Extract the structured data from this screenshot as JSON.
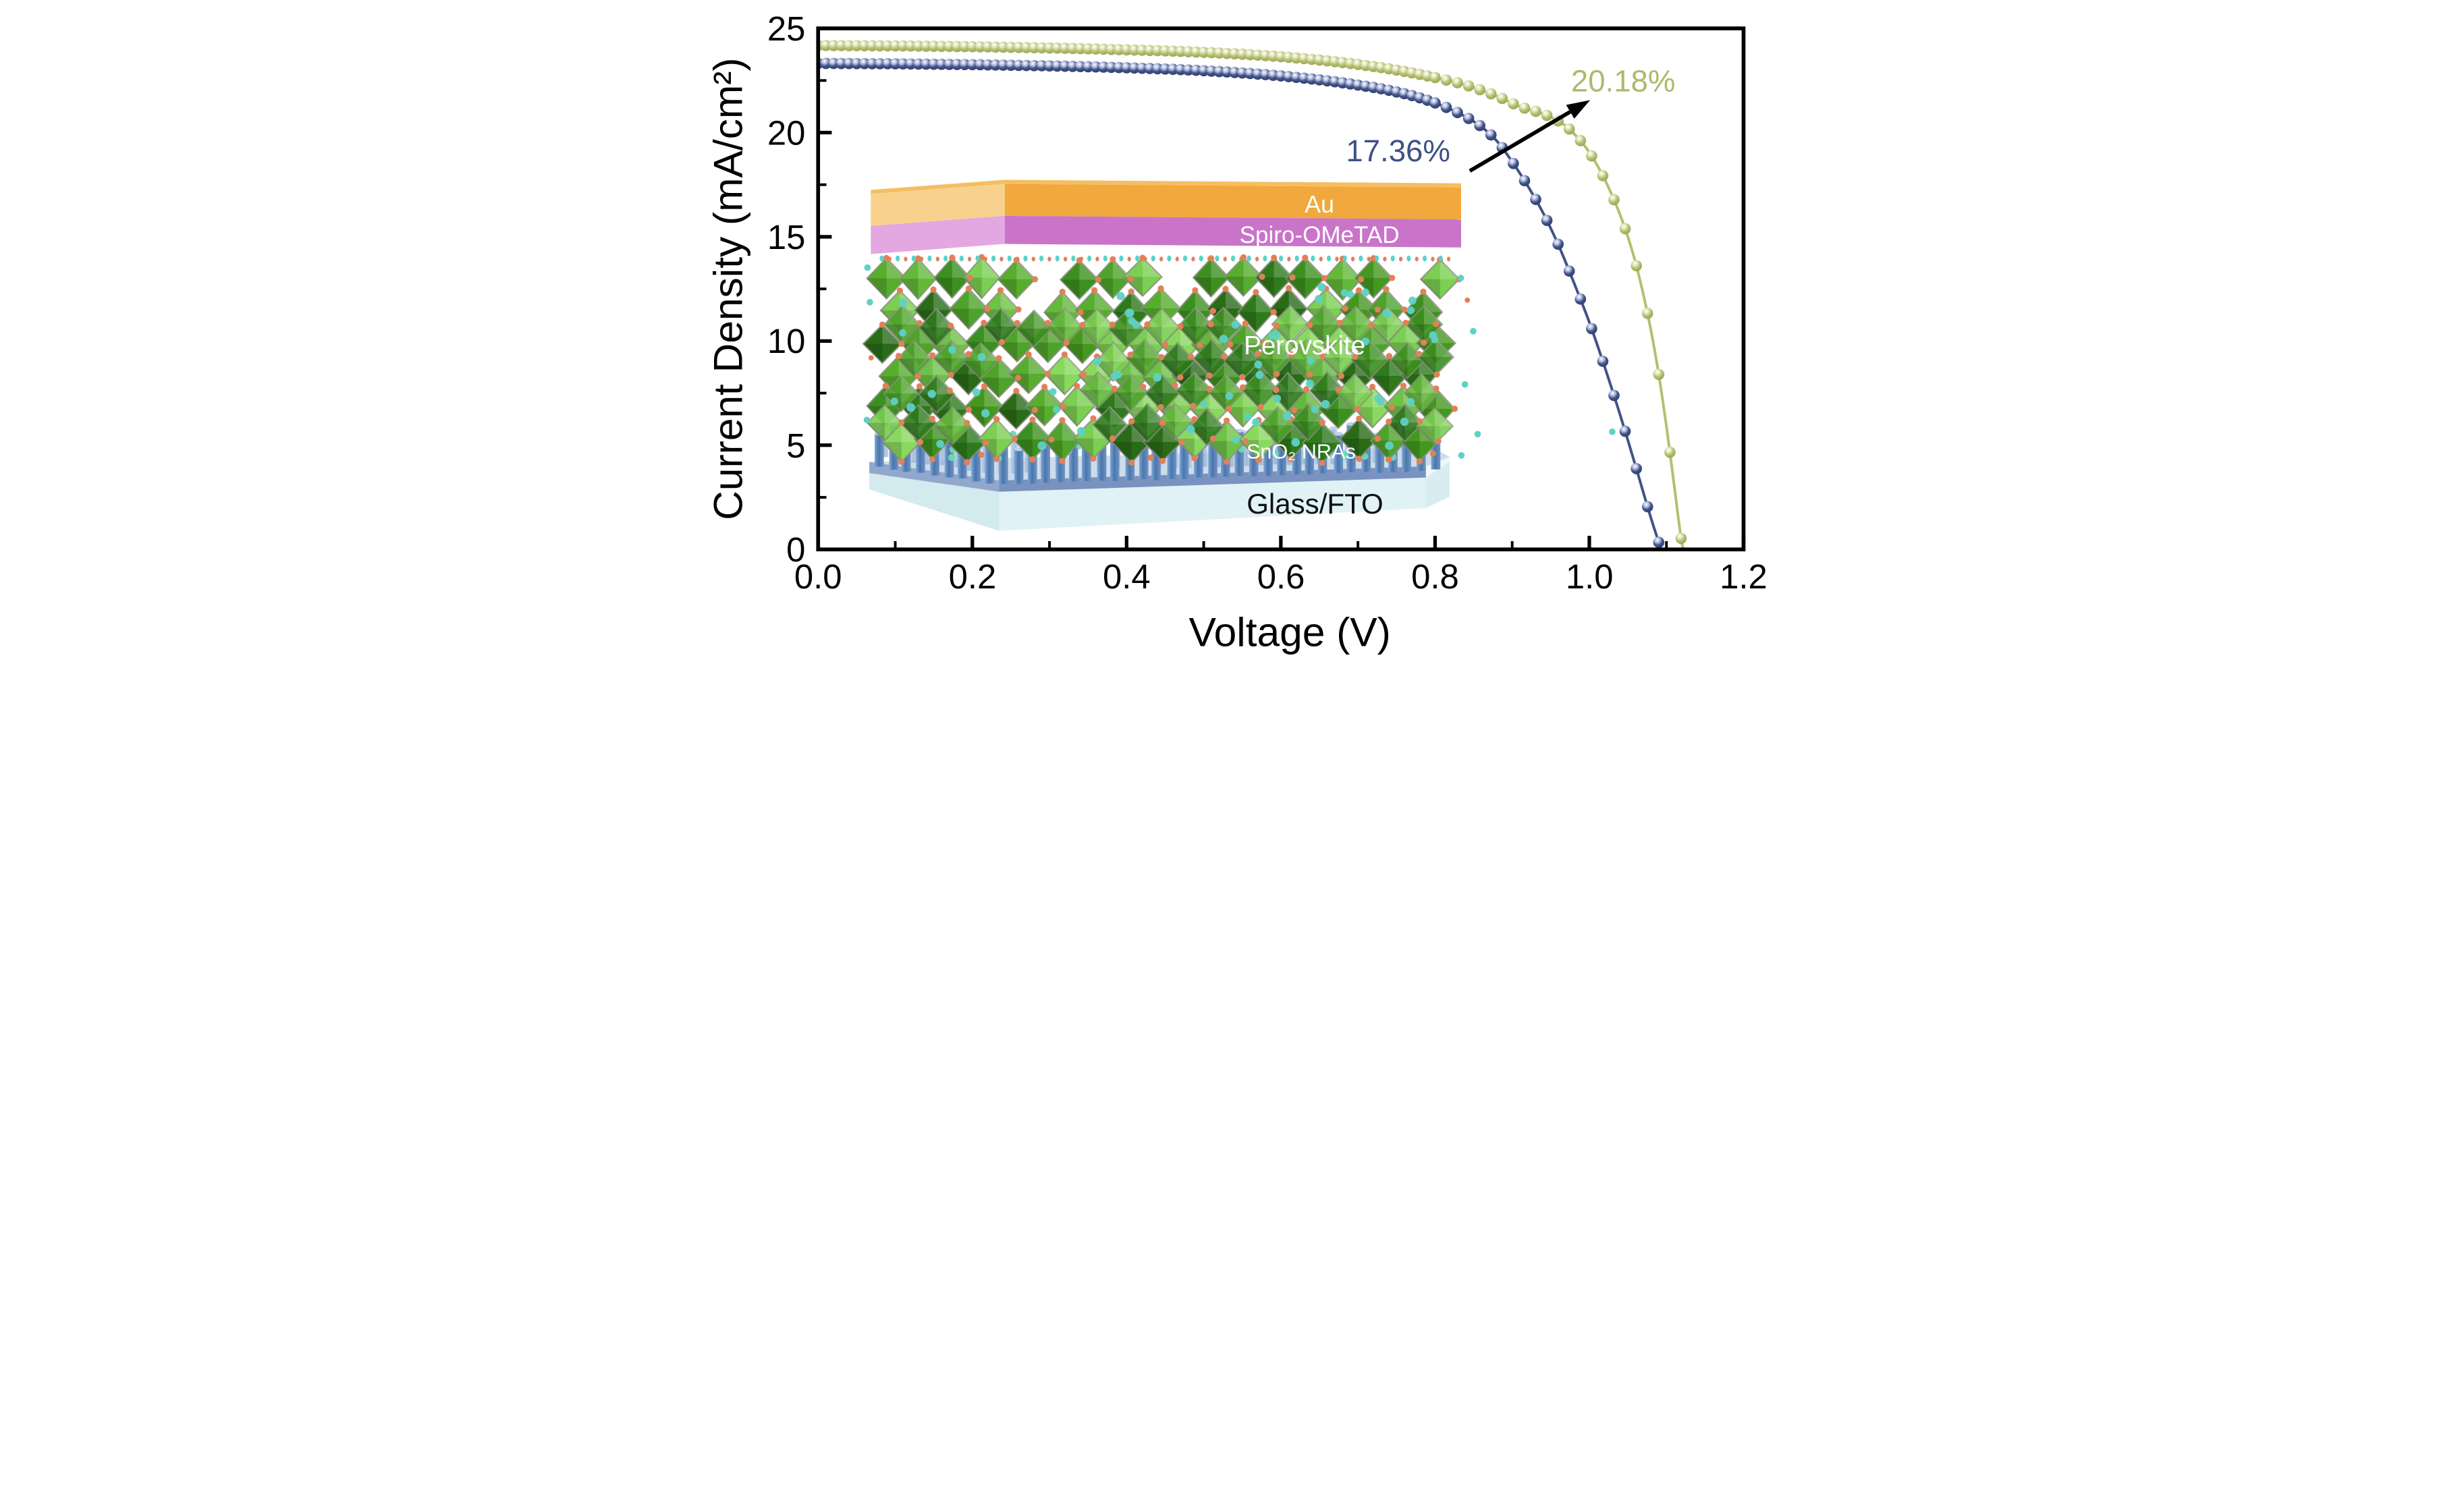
{
  "figure": {
    "kind": "J-V characteristic curves of perovskite solar cells with device schematic inset",
    "background": "#ffffff",
    "frame_color": "#000000"
  },
  "chart_data": {
    "type": "line",
    "title": "",
    "xlabel": "Voltage (V)",
    "ylabel": "Current Density (mA/cm²)",
    "xlim": [
      0.0,
      1.2
    ],
    "ylim": [
      0,
      25
    ],
    "grid": false,
    "legend_position": "none",
    "x_ticks": {
      "major": [
        0.0,
        0.2,
        0.4,
        0.6,
        0.8,
        1.0,
        1.2
      ],
      "minor": [
        0.1,
        0.3,
        0.5,
        0.7,
        0.9,
        1.1
      ],
      "decimals": 1
    },
    "y_ticks": {
      "major": [
        0,
        5,
        10,
        15,
        20,
        25
      ],
      "minor": [
        2.5,
        7.5,
        12.5,
        17.5,
        22.5
      ],
      "decimals": 0
    },
    "series": [
      {
        "id": "control",
        "pce_label": "17.36%",
        "color": "#3f5386",
        "marker_body": "#405488",
        "marker_edge": "#2d3a66",
        "marker_highlight": "#d7dbee",
        "jsc_mA_cm2": 23.3,
        "voc_V": 1.09,
        "points": [
          [
            0.0,
            23.32
          ],
          [
            0.05,
            23.31
          ],
          [
            0.1,
            23.3
          ],
          [
            0.15,
            23.28
          ],
          [
            0.2,
            23.26
          ],
          [
            0.25,
            23.23
          ],
          [
            0.3,
            23.2
          ],
          [
            0.35,
            23.16
          ],
          [
            0.4,
            23.11
          ],
          [
            0.45,
            23.05
          ],
          [
            0.5,
            22.97
          ],
          [
            0.55,
            22.86
          ],
          [
            0.6,
            22.72
          ],
          [
            0.65,
            22.53
          ],
          [
            0.7,
            22.28
          ],
          [
            0.74,
            22.03
          ],
          [
            0.78,
            21.67
          ],
          [
            0.81,
            21.28
          ],
          [
            0.84,
            20.75
          ],
          [
            0.86,
            20.28
          ],
          [
            0.88,
            19.6
          ],
          [
            0.9,
            18.6
          ],
          [
            0.92,
            17.45
          ],
          [
            0.94,
            16.15
          ],
          [
            0.96,
            14.6
          ],
          [
            0.98,
            12.8
          ],
          [
            1.0,
            10.9
          ],
          [
            1.02,
            8.75
          ],
          [
            1.04,
            6.45
          ],
          [
            1.06,
            4.0
          ],
          [
            1.08,
            1.5
          ],
          [
            1.093,
            0.0
          ]
        ]
      },
      {
        "id": "sno2-nra",
        "pce_label": "20.18%",
        "color": "#b5bf6e",
        "marker_body": "#b5bf70",
        "marker_edge": "#98a352",
        "marker_highlight": "#f4f4e0",
        "jsc_mA_cm2": 24.2,
        "voc_V": 1.12,
        "points": [
          [
            0.0,
            24.18
          ],
          [
            0.05,
            24.17
          ],
          [
            0.1,
            24.16
          ],
          [
            0.15,
            24.14
          ],
          [
            0.2,
            24.12
          ],
          [
            0.25,
            24.09
          ],
          [
            0.3,
            24.06
          ],
          [
            0.35,
            24.02
          ],
          [
            0.4,
            23.97
          ],
          [
            0.45,
            23.92
          ],
          [
            0.5,
            23.85
          ],
          [
            0.55,
            23.76
          ],
          [
            0.6,
            23.64
          ],
          [
            0.65,
            23.48
          ],
          [
            0.7,
            23.27
          ],
          [
            0.75,
            23.0
          ],
          [
            0.8,
            22.64
          ],
          [
            0.84,
            22.28
          ],
          [
            0.88,
            21.75
          ],
          [
            0.91,
            21.25
          ],
          [
            0.94,
            20.9
          ],
          [
            0.96,
            20.55
          ],
          [
            0.97,
            20.3
          ],
          [
            0.98,
            19.95
          ],
          [
            0.99,
            19.55
          ],
          [
            1.0,
            19.05
          ],
          [
            1.01,
            18.45
          ],
          [
            1.02,
            17.75
          ],
          [
            1.03,
            16.95
          ],
          [
            1.04,
            16.05
          ],
          [
            1.05,
            15.0
          ],
          [
            1.06,
            13.75
          ],
          [
            1.07,
            12.25
          ],
          [
            1.08,
            10.5
          ],
          [
            1.09,
            8.4
          ],
          [
            1.1,
            5.9
          ],
          [
            1.11,
            3.1
          ],
          [
            1.12,
            0.3
          ],
          [
            1.122,
            0.0
          ]
        ]
      }
    ],
    "annotations": {
      "labels": [
        {
          "series_id": "control",
          "text": "17.36%",
          "color": "#3d5186",
          "anchor_data_coords": [
            0.752,
            19.15
          ]
        },
        {
          "series_id": "sno2-nra",
          "text": "20.18%",
          "color": "#aeb96a",
          "anchor_data_coords": [
            1.044,
            22.5
          ]
        }
      ],
      "arrow": {
        "color": "#000000",
        "from_data_coords": [
          0.845,
          18.16
        ],
        "to_data_coords": [
          1.001,
          21.56
        ]
      }
    }
  },
  "inset": {
    "description": "3D schematic of SnO2 nanorod-array perovskite solar cell stack",
    "layers": [
      {
        "id": "au",
        "label": "Au",
        "label_color": "#ffffff",
        "front": "#f1a83c",
        "side": "#f8d28d",
        "top": "#f5be62"
      },
      {
        "id": "spiro",
        "label": "Spiro-OMeTAD",
        "label_color": "#ffffff",
        "front": "#c974c9",
        "side": "#e3a8e1"
      },
      {
        "id": "perovskite",
        "label": "Perovskite",
        "label_color": "#ffffff",
        "octahedra_greens": [
          "#2e7a1c",
          "#3c901f",
          "#4ea32a",
          "#63b93a",
          "#7bcf52",
          "#2a6b18",
          "#45981f",
          "#57ad2e",
          "#6ec247",
          "#8ad95f"
        ],
        "edge_color": "#8a8f80",
        "vertex_atom": "#e28058",
        "cation_atom": "#5ed1c5"
      },
      {
        "id": "sno2",
        "label": "SnO₂ NRAs",
        "label_color": "#ffffff",
        "rod_dark": "#4a76ad",
        "rod_mid": "#7ea6d4",
        "rod_back": "#a6bedd",
        "rod_cap": "#bdd2e8",
        "tip_atom": "#6fd7b0"
      },
      {
        "id": "glass",
        "label": "Glass/FTO",
        "label_color": "#111111",
        "fto_front": "#7a92bf",
        "fto_side": "#91a7cc",
        "fto_top": "#ccdcea",
        "glass_front": "#e0f2f5",
        "glass_side": "#d3eaee",
        "glass_top": "#ecf8fa",
        "glass_right": "#d8edf1"
      }
    ]
  }
}
